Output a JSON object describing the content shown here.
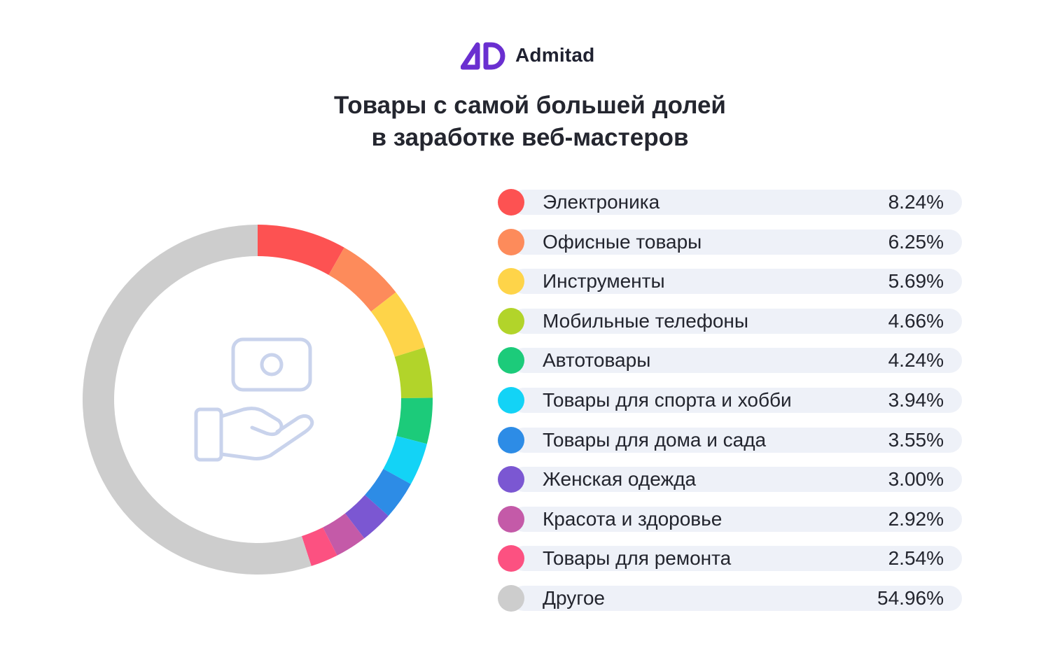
{
  "logo": {
    "text": "Admitad",
    "icon": "admitad-logo-icon",
    "color": "#6a2fd0"
  },
  "title": {
    "line1": "Товары с самой большей долей",
    "line2": "в заработке веб-мастеров"
  },
  "center_icon": "money-on-hand-icon",
  "chart_data": {
    "type": "pie",
    "style": "donut",
    "title": "Товары с самой большей долей в заработке веб-мастеров",
    "unit": "%",
    "legend_position": "right",
    "slices": [
      {
        "label": "Электроника",
        "value": 8.24,
        "display": "8.24%",
        "color": "#fd5252"
      },
      {
        "label": "Офисные товары",
        "value": 6.25,
        "display": "6.25%",
        "color": "#fd8b5b"
      },
      {
        "label": "Инструменты",
        "value": 5.69,
        "display": "5.69%",
        "color": "#fed449"
      },
      {
        "label": "Мобильные телефоны",
        "value": 4.66,
        "display": "4.66%",
        "color": "#b2d42a"
      },
      {
        "label": "Автотовары",
        "value": 4.24,
        "display": "4.24%",
        "color": "#1ccb7a"
      },
      {
        "label": "Товары для спорта и хобби",
        "value": 3.94,
        "display": "3.94%",
        "color": "#13d3f6"
      },
      {
        "label": "Товары для дома и сада",
        "value": 3.55,
        "display": "3.55%",
        "color": "#2d8ce6"
      },
      {
        "label": "Женская одежда",
        "value": 3.0,
        "display": "3.00%",
        "color": "#7b57d2"
      },
      {
        "label": "Красота и здоровье",
        "value": 2.92,
        "display": "2.92%",
        "color": "#c45aa8"
      },
      {
        "label": "Товары для ремонта",
        "value": 2.54,
        "display": "2.54%",
        "color": "#fc5181"
      },
      {
        "label": "Другое",
        "value": 54.96,
        "display": "54.96%",
        "color": "#cdcdcd"
      }
    ]
  }
}
